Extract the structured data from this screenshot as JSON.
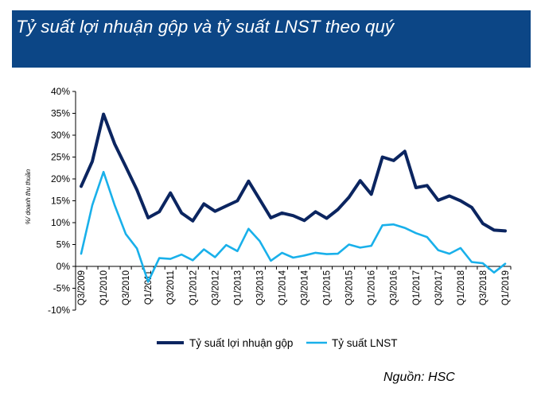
{
  "title": "Tỷ suất lợi nhuận gộp và tỷ suất LNST theo quý",
  "source_note": "Nguồn: HSC",
  "colors": {
    "banner": "#0c4686",
    "gross": "#0b2560",
    "net": "#19b0ea",
    "text": "#000000"
  },
  "chart_data": {
    "type": "line",
    "ylabel": "%/ doanh thu thuần",
    "ylim": [
      -10,
      40
    ],
    "ytick_labels": [
      "40%",
      "35%",
      "30%",
      "25%",
      "20%",
      "15%",
      "10%",
      "5%",
      "0%",
      "-5%",
      "-10%"
    ],
    "x_tick_labels": [
      "Q3/2009",
      "Q1/2010",
      "Q3/2010",
      "Q1/2011",
      "Q3/2011",
      "Q1/2012",
      "Q3/2012",
      "Q1/2013",
      "Q3/2013",
      "Q1/2014",
      "Q3/2014",
      "Q1/2015",
      "Q3/2015",
      "Q1/2016",
      "Q3/2016",
      "Q1/2017",
      "Q3/2017",
      "Q1/2018",
      "Q3/2018",
      "Q1/2019"
    ],
    "x": [
      "Q3/2009",
      "Q4/2009",
      "Q1/2010",
      "Q2/2010",
      "Q3/2010",
      "Q4/2010",
      "Q1/2011",
      "Q2/2011",
      "Q3/2011",
      "Q4/2011",
      "Q1/2012",
      "Q2/2012",
      "Q3/2012",
      "Q4/2012",
      "Q1/2013",
      "Q2/2013",
      "Q3/2013",
      "Q4/2013",
      "Q1/2014",
      "Q2/2014",
      "Q3/2014",
      "Q4/2014",
      "Q1/2015",
      "Q2/2015",
      "Q3/2015",
      "Q4/2015",
      "Q1/2016",
      "Q2/2016",
      "Q3/2016",
      "Q4/2016",
      "Q1/2017",
      "Q2/2017",
      "Q3/2017",
      "Q4/2017",
      "Q1/2018",
      "Q2/2018",
      "Q3/2018",
      "Q4/2018",
      "Q1/2019"
    ],
    "grid": false,
    "legend_position": "bottom",
    "series": [
      {
        "name": "Tỷ suất lợi nhuận gộp",
        "values": [
          18.3,
          24,
          34.8,
          28,
          22.8,
          17.5,
          11.1,
          12.5,
          16.8,
          12.2,
          10.4,
          14.3,
          12.6,
          13.8,
          15,
          19.5,
          15.3,
          11.1,
          12.2,
          11.6,
          10.5,
          12.5,
          11,
          13,
          15.8,
          19.6,
          16.5,
          25,
          24.2,
          26.3,
          18,
          18.5,
          15.1,
          16.1,
          15,
          13.5,
          9.8,
          8.3,
          8.1
        ]
      },
      {
        "name": "Tỷ suất LNST",
        "values": [
          2.9,
          14,
          21.6,
          14,
          7.4,
          4.1,
          -3.5,
          1.9,
          1.7,
          2.7,
          1.4,
          3.9,
          2.1,
          4.9,
          3.5,
          8.6,
          5.8,
          1.3,
          3.1,
          2,
          2.5,
          3.1,
          2.8,
          2.9,
          5,
          4.3,
          4.7,
          9.4,
          9.6,
          8.8,
          7.6,
          6.7,
          3.7,
          2.9,
          4.2,
          1,
          0.7,
          -1.4,
          0.6
        ]
      }
    ]
  }
}
